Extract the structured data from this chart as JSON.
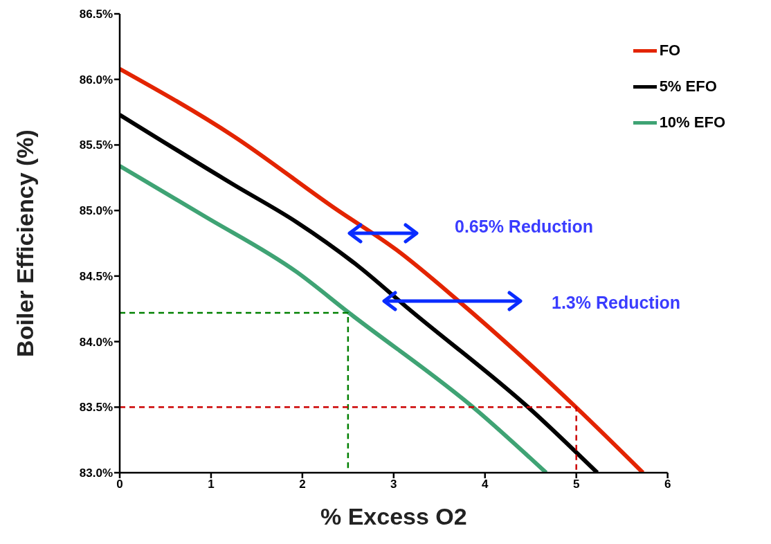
{
  "chart_data": {
    "type": "line",
    "xlabel": "% Excess O2",
    "ylabel": "Boiler Efficiency (%)",
    "xlim": [
      0,
      6
    ],
    "xticks": [
      0,
      1,
      2,
      3,
      4,
      5,
      6
    ],
    "ylim": [
      83.0,
      86.5
    ],
    "yticks": [
      {
        "value": 83.0,
        "label": "83.0%"
      },
      {
        "value": 83.5,
        "label": "83.5%"
      },
      {
        "value": 84.0,
        "label": "84.0%"
      },
      {
        "value": 84.5,
        "label": "84.5%"
      },
      {
        "value": 85.0,
        "label": "85.0%"
      },
      {
        "value": 85.5,
        "label": "85.5%"
      },
      {
        "value": 86.0,
        "label": "86.0%"
      },
      {
        "value": 86.5,
        "label": "86.5%"
      }
    ],
    "grid": false,
    "legend": "top right",
    "marker": "none",
    "line_style": "solid",
    "series": [
      {
        "name": "FO",
        "color": "#e32400",
        "x": [
          0,
          1.24,
          2.37,
          3.03,
          3.71,
          5.01,
          5.73
        ],
        "values": [
          86.08,
          85.57,
          85.01,
          84.7,
          84.31,
          83.49,
          83.0
        ]
      },
      {
        "name": "5% EFO",
        "color": "#000000",
        "x": [
          0,
          1.24,
          1.94,
          2.64,
          3.13,
          4.52,
          5.23
        ],
        "values": [
          85.73,
          85.2,
          84.91,
          84.56,
          84.27,
          83.47,
          83.0
        ]
      },
      {
        "name": "10% EFO",
        "color": "#3fa374",
        "x": [
          0,
          0.92,
          1.94,
          2.51,
          3.92,
          4.67
        ],
        "values": [
          85.34,
          84.96,
          84.53,
          84.22,
          83.47,
          83.0
        ]
      },
      {
        "type": "line",
        "color": "#008000",
        "line_style": "dashed",
        "x": [
          0,
          2.5,
          2.5
        ],
        "values": [
          84.22,
          84.22,
          83.0
        ]
      },
      {
        "type": "line",
        "color": "#cc0000",
        "line_style": "dashed",
        "x": [
          0,
          5,
          5
        ],
        "values": [
          83.5,
          83.5,
          83.0
        ]
      }
    ],
    "annotations": [
      "0.65% Reduction",
      "1.3% Reduction"
    ]
  }
}
